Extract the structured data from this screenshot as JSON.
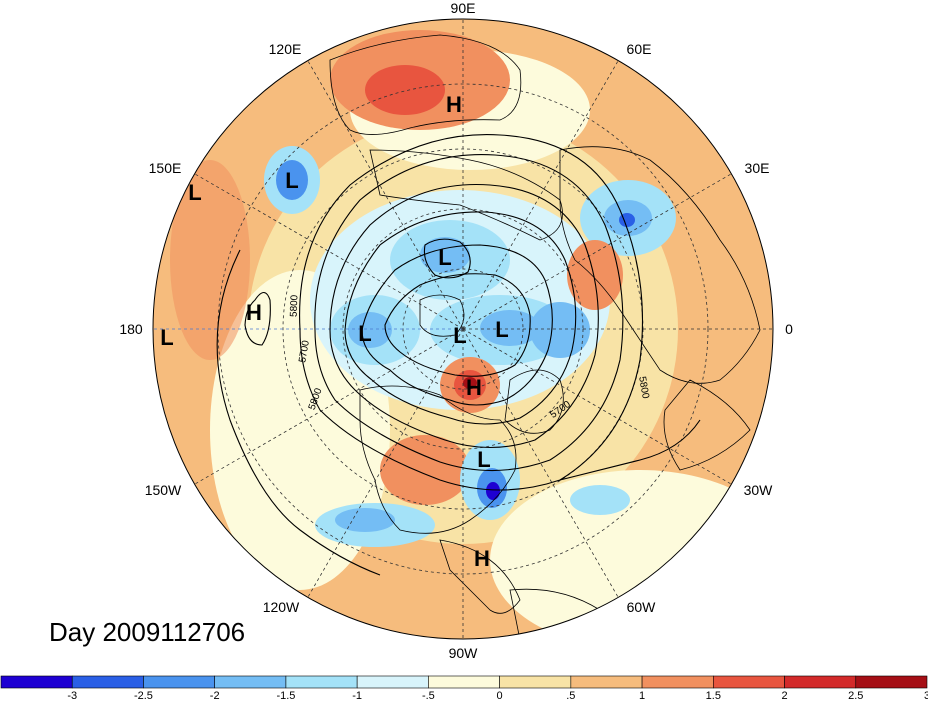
{
  "map": {
    "projection": "north-polar-stereographic",
    "longitude_labels": [
      "90E",
      "60E",
      "30E",
      "0",
      "30W",
      "60W",
      "90W",
      "120W",
      "150W",
      "180",
      "150E",
      "120E"
    ],
    "contour_labels": [
      "5800",
      "5700",
      "5800",
      "5700",
      "5800"
    ],
    "pressure_centers": [
      {
        "type": "H",
        "region": "siberia"
      },
      {
        "type": "L",
        "region": "kamchatka"
      },
      {
        "type": "L",
        "region": "west-pacific-edge"
      },
      {
        "type": "H",
        "region": "central-pacific"
      },
      {
        "type": "L",
        "region": "dateline-edge"
      },
      {
        "type": "L",
        "region": "east-siberian-sea"
      },
      {
        "type": "L",
        "region": "beaufort-sea"
      },
      {
        "type": "L",
        "region": "north-pole"
      },
      {
        "type": "L",
        "region": "greenland"
      },
      {
        "type": "H",
        "region": "hudson-bay"
      },
      {
        "type": "L",
        "region": "great-lakes"
      },
      {
        "type": "H",
        "region": "gulf-of-mexico"
      }
    ]
  },
  "title": {
    "date_text": "Day 2009112706"
  },
  "colorbar": {
    "colors": [
      "#1e00d2",
      "#2a5fe6",
      "#4a93ee",
      "#74bdf4",
      "#a4e2f8",
      "#d8f4fb",
      "#fdfbdc",
      "#f8e3a6",
      "#f6bc7d",
      "#f1905f",
      "#e8553f",
      "#d32a2a",
      "#a50f15"
    ],
    "tick_labels": [
      "-3",
      "-2.5",
      "-2",
      "-1.5",
      "-1",
      "-.5",
      "0",
      ".5",
      "1",
      "1.5",
      "2",
      "2.5",
      "3"
    ]
  }
}
